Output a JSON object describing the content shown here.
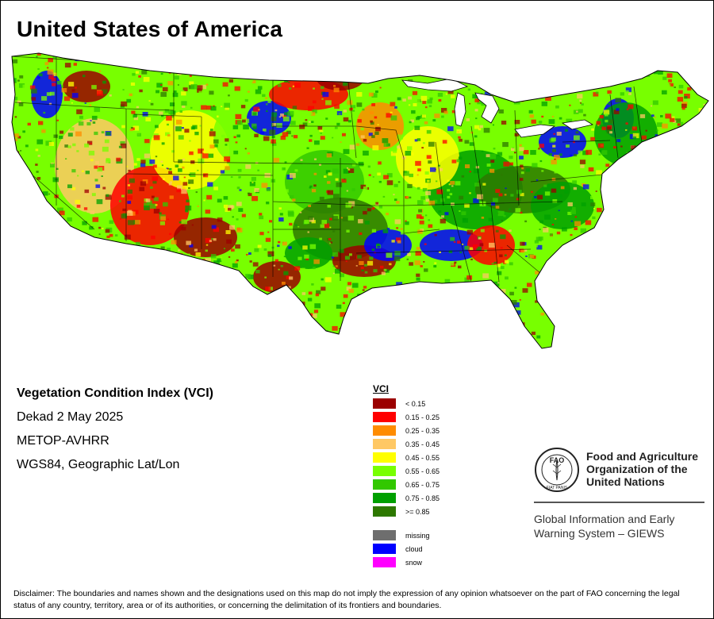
{
  "title": "United States of America",
  "info_lines": [
    "Vegetation Condition Index (VCI)",
    "Dekad 2 May 2025",
    "METOP-AVHRR",
    "WGS84, Geographic Lat/Lon"
  ],
  "legend": {
    "title": "VCI",
    "classes": [
      {
        "label": "< 0.15",
        "color": "#9b0000"
      },
      {
        "label": "0.15 - 0.25",
        "color": "#ff0000"
      },
      {
        "label": "0.25 - 0.35",
        "color": "#ff8c00"
      },
      {
        "label": "0.35 - 0.45",
        "color": "#ffc864"
      },
      {
        "label": "0.45 - 0.55",
        "color": "#ffff00"
      },
      {
        "label": "0.55 - 0.65",
        "color": "#78ff00"
      },
      {
        "label": "0.65 - 0.75",
        "color": "#32c800"
      },
      {
        "label": "0.75 - 0.85",
        "color": "#00a000"
      },
      {
        "label": ">= 0.85",
        "color": "#2d7800"
      }
    ],
    "extra": [
      {
        "label": "missing",
        "color": "#6e6e6e"
      },
      {
        "label": "cloud",
        "color": "#0000ff"
      },
      {
        "label": "snow",
        "color": "#ff00ff"
      }
    ]
  },
  "fao": {
    "emblem_text": "FAO",
    "emblem_motto": "FIAT PANIS",
    "name_lines": [
      "Food and Agriculture",
      "Organization of the",
      "United Nations"
    ],
    "giews_lines": [
      "Global Information and Early",
      "Warning System – GIEWS"
    ]
  },
  "disclaimer": "Disclaimer: The boundaries and names shown and the designations used on this map do not imply the expression of any opinion whatsoever on the part of FAO concerning the legal status of any country, territory, area or of its authorities, or concerning the delimitation of its frontiers and boundaries."
}
